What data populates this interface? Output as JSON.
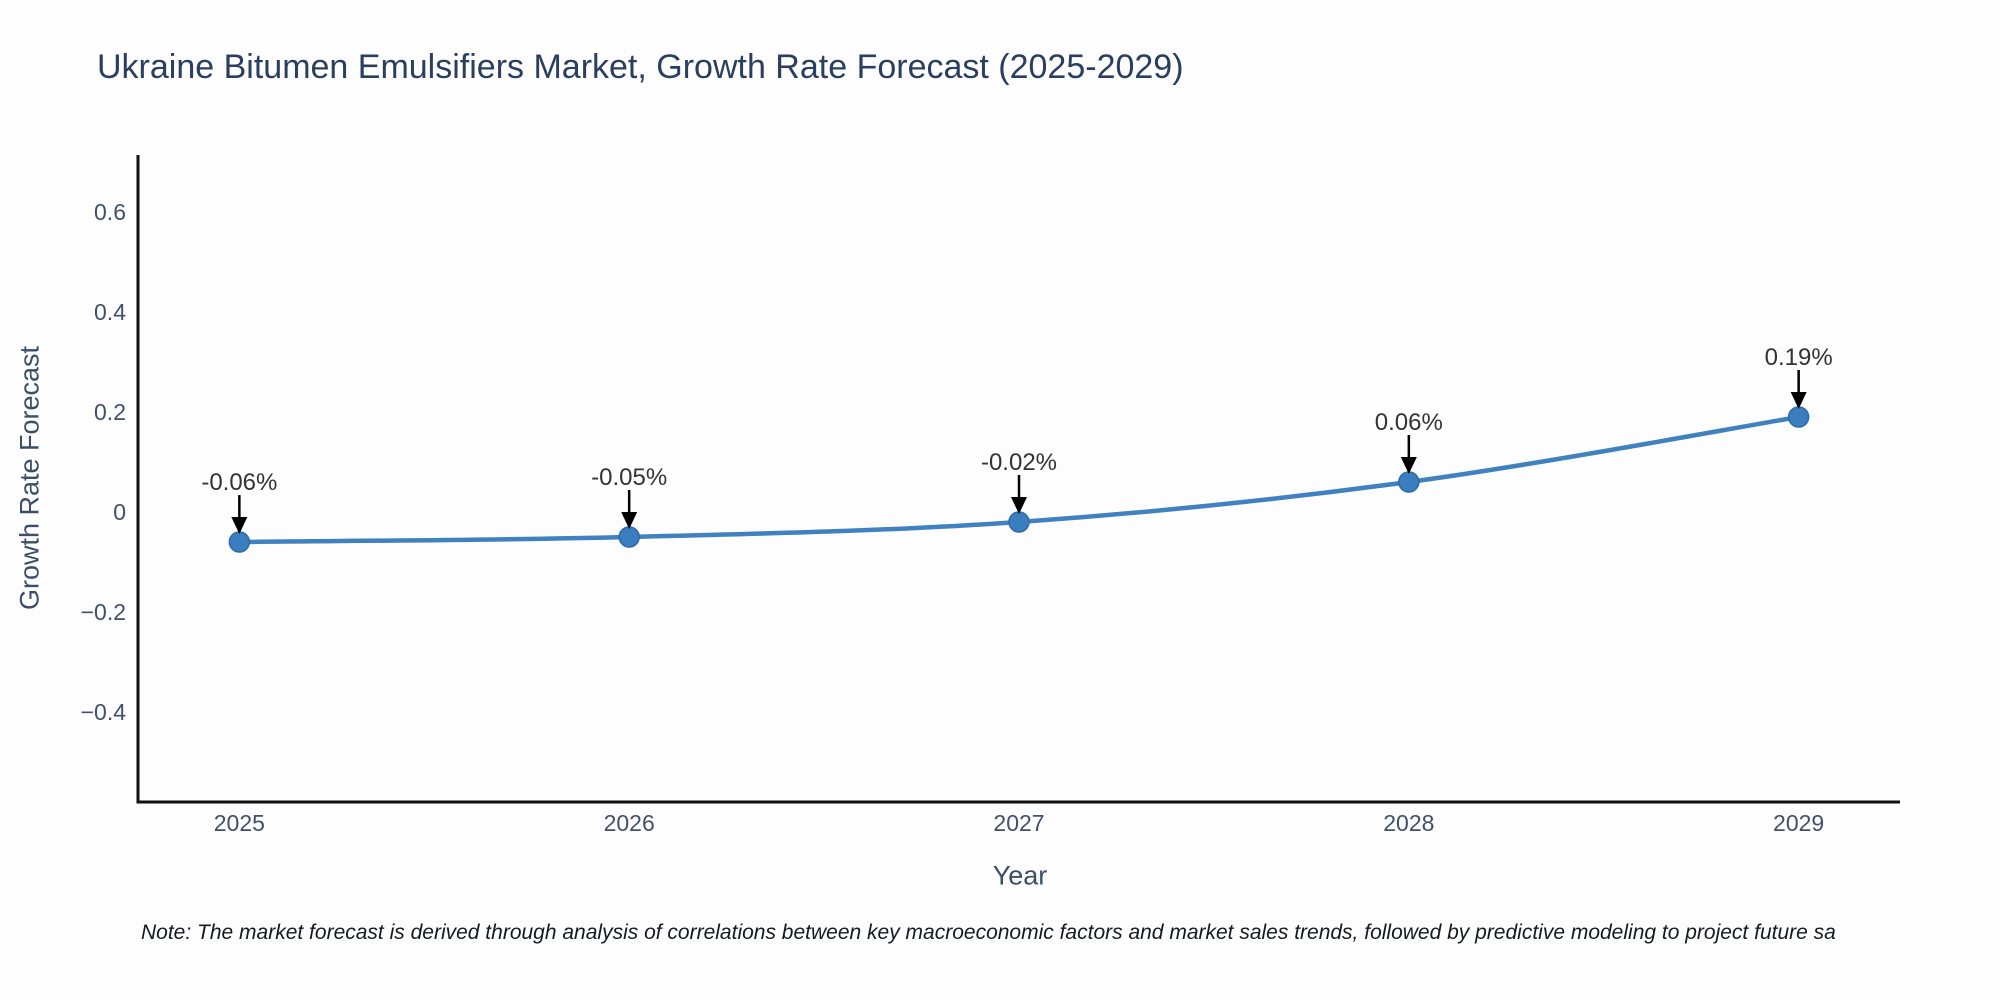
{
  "title": "Ukraine Bitumen Emulsifiers Market, Growth Rate Forecast (2025-2029)",
  "note": "Note: The market forecast is derived through analysis of correlations between key macroeconomic factors and market sales trends, followed by predictive modeling to project future sa",
  "chart_data": {
    "type": "line",
    "title": "Ukraine Bitumen Emulsifiers Market, Growth Rate Forecast (2025-2029)",
    "xlabel": "Year",
    "ylabel": "Growth Rate Forecast",
    "x": [
      2025,
      2026,
      2027,
      2028,
      2029
    ],
    "categories": [
      "2025",
      "2026",
      "2027",
      "2028",
      "2029"
    ],
    "series": [
      {
        "name": "Growth Rate Forecast",
        "values": [
          -0.06,
          -0.05,
          -0.02,
          0.06,
          0.19
        ]
      }
    ],
    "annotations": [
      "-0.06%",
      "-0.05%",
      "-0.02%",
      "0.06%",
      "0.19%"
    ],
    "yticks": [
      0.6,
      0.4,
      0.2,
      0,
      -0.2,
      -0.4
    ],
    "ytick_labels": [
      "0.6",
      "0.4",
      "0.2",
      "0",
      "−0.2",
      "−0.4"
    ],
    "ylim": [
      -0.58,
      0.714
    ],
    "xlim": [
      2024.74,
      2029.26
    ],
    "grid": false,
    "legend": "none",
    "line_shape": "spline",
    "colors": {
      "line": "#4081bf",
      "marker": "#3a7ebf",
      "marker_edge": "#2f6ba8",
      "axis": "#111111",
      "tick_text": "#42506b",
      "annotation_text": "#333333",
      "arrow": "#000000",
      "title_text": "#2a3f5f"
    }
  }
}
